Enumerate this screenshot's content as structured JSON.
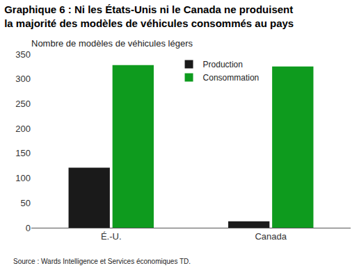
{
  "chart_data": {
    "type": "bar",
    "title": "Graphique 6 : Ni les États-Unis ni le Canada ne produisent\nla majorité des modèles de véhicules consommés au pays",
    "y_label": "Nombre de modèles de véhicules légers",
    "source": "Source : Wards Intelligence et Services économiques TD.",
    "categories": [
      "É.-U.",
      "Canada"
    ],
    "series": [
      {
        "name": "Production",
        "color": "#1a1a1a",
        "values": [
          121,
          13
        ]
      },
      {
        "name": "Consommation",
        "color": "#0e9b1e",
        "values": [
          328,
          325
        ]
      }
    ],
    "ylim": [
      0,
      350
    ],
    "yticks": [
      0,
      50,
      100,
      150,
      200,
      250,
      300,
      350
    ],
    "grid": false,
    "legend": "upper center",
    "data_labels": false
  }
}
